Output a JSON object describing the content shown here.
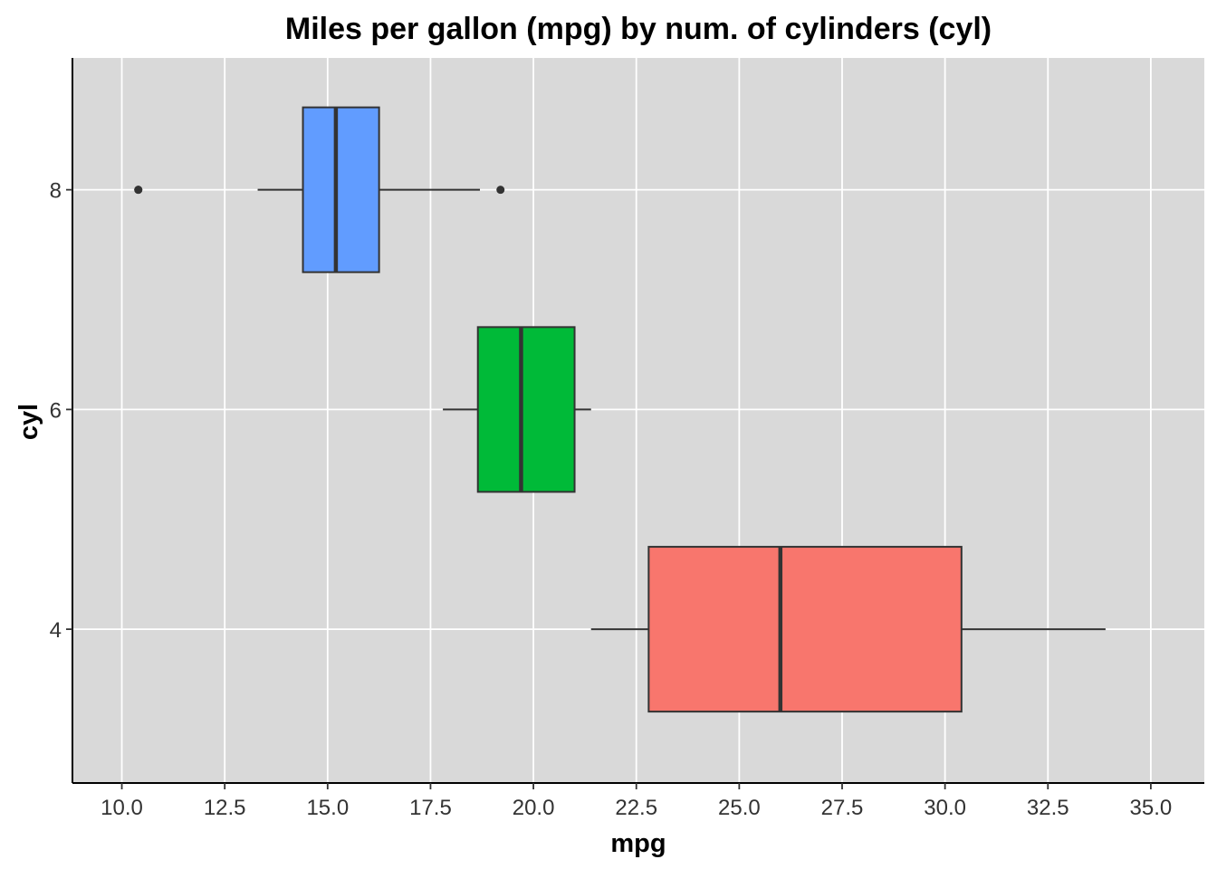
{
  "chart_data": {
    "type": "boxplot",
    "orientation": "horizontal",
    "title": "Miles per gallon (mpg) by num. of cylinders (cyl)",
    "xlabel": "mpg",
    "ylabel": "cyl",
    "xlim": [
      8.8,
      36.3
    ],
    "ylim": [
      2.6,
      9.2
    ],
    "x_ticks": [
      "10.0",
      "12.5",
      "15.0",
      "17.5",
      "20.0",
      "22.5",
      "25.0",
      "27.5",
      "30.0",
      "32.5",
      "35.0"
    ],
    "x_tick_values": [
      10,
      12.5,
      15,
      17.5,
      20,
      22.5,
      25,
      27.5,
      30,
      32.5,
      35
    ],
    "y_ticks": [
      "4",
      "6",
      "8"
    ],
    "y_tick_values": [
      4,
      6,
      8
    ],
    "grid": true,
    "legend": "none",
    "background_color": "#d9d9d9",
    "grid_color": "#ffffff",
    "outline_color": "#333333",
    "series": [
      {
        "cyl": 4,
        "color": "#f8766d",
        "whisker_low": 21.4,
        "q1": 22.8,
        "median": 26.0,
        "q3": 30.4,
        "whisker_high": 33.9,
        "outliers": []
      },
      {
        "cyl": 6,
        "color": "#00ba38",
        "whisker_low": 17.8,
        "q1": 18.65,
        "median": 19.7,
        "q3": 21.0,
        "whisker_high": 21.4,
        "outliers": []
      },
      {
        "cyl": 8,
        "color": "#619cff",
        "whisker_low": 13.3,
        "q1": 14.4,
        "median": 15.2,
        "q3": 16.25,
        "whisker_high": 18.7,
        "outliers": [
          10.4,
          10.4,
          19.2
        ]
      }
    ]
  }
}
